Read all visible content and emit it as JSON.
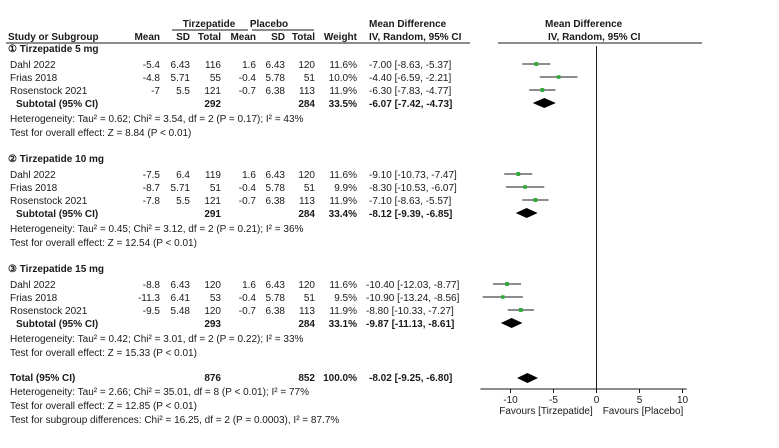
{
  "header": {
    "group_tirz": "Tirzepatide",
    "group_plac": "Placebo",
    "mean_difference": "Mean Difference",
    "mean_difference_plot": "Mean Difference",
    "study": "Study or Subgroup",
    "mean": "Mean",
    "sd": "SD",
    "total": "Total",
    "weight": "Weight",
    "method": "IV, Random, 95% CI",
    "method_plot": "IV, Random, 95% CI"
  },
  "subgroups": [
    {
      "title": "① Tirzepatide 5 mg",
      "studies": [
        {
          "name": "Dahl 2022",
          "t_mean": "-5.4",
          "t_sd": "6.43",
          "t_total": "116",
          "p_mean": "1.6",
          "p_sd": "6.43",
          "p_total": "120",
          "weight": "11.6%",
          "ci_text": "-7.00 [-8.63, -5.37]"
        },
        {
          "name": "Frias 2018",
          "t_mean": "-4.8",
          "t_sd": "5.71",
          "t_total": "55",
          "p_mean": "-0.4",
          "p_sd": "5.78",
          "p_total": "51",
          "weight": "10.0%",
          "ci_text": "-4.40 [-6.59, -2.21]"
        },
        {
          "name": "Rosenstock 2021",
          "t_mean": "-7",
          "t_sd": "5.5",
          "t_total": "121",
          "p_mean": "-0.7",
          "p_sd": "6.38",
          "p_total": "113",
          "weight": "11.9%",
          "ci_text": "-6.30 [-7.83, -4.77]"
        }
      ],
      "subtotal": {
        "label": "Subtotal (95% CI)",
        "t_total": "292",
        "p_total": "284",
        "weight": "33.5%",
        "ci_text": "-6.07 [-7.42, -4.73]"
      },
      "heterogeneity": "Heterogeneity: Tau² = 0.62; Chi² = 3.54, df = 2 (P = 0.17); I² = 43%",
      "overall_test": "Test for overall effect: Z = 8.84 (P < 0.01)"
    },
    {
      "title": "② Tirzepatide 10 mg",
      "studies": [
        {
          "name": "Dahl 2022",
          "t_mean": "-7.5",
          "t_sd": "6.4",
          "t_total": "119",
          "p_mean": "1.6",
          "p_sd": "6.43",
          "p_total": "120",
          "weight": "11.6%",
          "ci_text": "-9.10 [-10.73, -7.47]"
        },
        {
          "name": "Frias 2018",
          "t_mean": "-8.7",
          "t_sd": "5.71",
          "t_total": "51",
          "p_mean": "-0.4",
          "p_sd": "5.78",
          "p_total": "51",
          "weight": "9.9%",
          "ci_text": "-8.30 [-10.53, -6.07]"
        },
        {
          "name": "Rosenstock 2021",
          "t_mean": "-7.8",
          "t_sd": "5.5",
          "t_total": "121",
          "p_mean": "-0.7",
          "p_sd": "6.38",
          "p_total": "113",
          "weight": "11.9%",
          "ci_text": "-7.10 [-8.63, -5.57]"
        }
      ],
      "subtotal": {
        "label": "Subtotal (95% CI)",
        "t_total": "291",
        "p_total": "284",
        "weight": "33.4%",
        "ci_text": "-8.12 [-9.39, -6.85]"
      },
      "heterogeneity": "Heterogeneity: Tau² = 0.45; Chi² = 3.12, df = 2 (P = 0.21); I² = 36%",
      "overall_test": "Test for overall effect: Z = 12.54 (P < 0.01)"
    },
    {
      "title": "③ Tirzepatide 15 mg",
      "studies": [
        {
          "name": "Dahl 2022",
          "t_mean": "-8.8",
          "t_sd": "6.43",
          "t_total": "120",
          "p_mean": "1.6",
          "p_sd": "6.43",
          "p_total": "120",
          "weight": "11.6%",
          "ci_text": "-10.40 [-12.03, -8.77]"
        },
        {
          "name": "Frias 2018",
          "t_mean": "-11.3",
          "t_sd": "6.41",
          "t_total": "53",
          "p_mean": "-0.4",
          "p_sd": "5.78",
          "p_total": "51",
          "weight": "9.5%",
          "ci_text": "-10.90 [-13.24, -8.56]"
        },
        {
          "name": "Rosenstock 2021",
          "t_mean": "-9.5",
          "t_sd": "5.48",
          "t_total": "120",
          "p_mean": "-0.7",
          "p_sd": "6.38",
          "p_total": "113",
          "weight": "11.9%",
          "ci_text": "-8.80 [-10.33, -7.27]"
        }
      ],
      "subtotal": {
        "label": "Subtotal (95% CI)",
        "t_total": "293",
        "p_total": "284",
        "weight": "33.1%",
        "ci_text": "-9.87 [-11.13, -8.61]"
      },
      "heterogeneity": "Heterogeneity: Tau² = 0.42; Chi² = 3.01, df = 2 (P = 0.22); I² = 33%",
      "overall_test": "Test for overall effect: Z = 15.33 (P < 0.01)"
    }
  ],
  "total": {
    "label": "Total (95% CI)",
    "t_total": "876",
    "p_total": "852",
    "weight": "100.0%",
    "ci_text": "-8.02 [-9.25, -6.80]",
    "heterogeneity": "Heterogeneity: Tau² = 2.66; Chi² = 35.01, df = 8 (P < 0.01); I² = 77%",
    "overall_test": "Test for overall effect: Z = 12.85 (P < 0.01)",
    "subgroup_test": "Test for subgroup differences: Chi² = 16.25, df = 2 (P = 0.0003), I² = 87.7%"
  },
  "axis": {
    "favours_left": "Favours [Tirzepatide]",
    "favours_right": "Favours [Placebo]"
  },
  "colors": {
    "point": "#2eaa3a",
    "line": "#1a1a1a",
    "diamond": "#000000"
  },
  "chart_data": {
    "type": "forest",
    "xlim": [
      -13.5,
      10.5
    ],
    "ticks": [
      -10,
      -5,
      0,
      5,
      10
    ],
    "reference_line": 0,
    "studies": [
      {
        "subgroup": 0,
        "name": "Dahl 2022",
        "md": -7.0,
        "lo": -8.63,
        "hi": -5.37,
        "weight": 11.6
      },
      {
        "subgroup": 0,
        "name": "Frias 2018",
        "md": -4.4,
        "lo": -6.59,
        "hi": -2.21,
        "weight": 10.0
      },
      {
        "subgroup": 0,
        "name": "Rosenstock 2021",
        "md": -6.3,
        "lo": -7.83,
        "hi": -4.77,
        "weight": 11.9
      },
      {
        "subgroup": 1,
        "name": "Dahl 2022",
        "md": -9.1,
        "lo": -10.73,
        "hi": -7.47,
        "weight": 11.6
      },
      {
        "subgroup": 1,
        "name": "Frias 2018",
        "md": -8.3,
        "lo": -10.53,
        "hi": -6.07,
        "weight": 9.9
      },
      {
        "subgroup": 1,
        "name": "Rosenstock 2021",
        "md": -7.1,
        "lo": -8.63,
        "hi": -5.57,
        "weight": 11.9
      },
      {
        "subgroup": 2,
        "name": "Dahl 2022",
        "md": -10.4,
        "lo": -12.03,
        "hi": -8.77,
        "weight": 11.6
      },
      {
        "subgroup": 2,
        "name": "Frias 2018",
        "md": -10.9,
        "lo": -13.24,
        "hi": -8.56,
        "weight": 9.5
      },
      {
        "subgroup": 2,
        "name": "Rosenstock 2021",
        "md": -8.8,
        "lo": -10.33,
        "hi": -7.27,
        "weight": 11.9
      }
    ],
    "summaries": [
      {
        "name": "Subtotal 5 mg",
        "md": -6.07,
        "lo": -7.42,
        "hi": -4.73
      },
      {
        "name": "Subtotal 10 mg",
        "md": -8.12,
        "lo": -9.39,
        "hi": -6.85
      },
      {
        "name": "Subtotal 15 mg",
        "md": -9.87,
        "lo": -11.13,
        "hi": -8.61
      },
      {
        "name": "Total",
        "md": -8.02,
        "lo": -9.25,
        "hi": -6.8
      }
    ]
  }
}
